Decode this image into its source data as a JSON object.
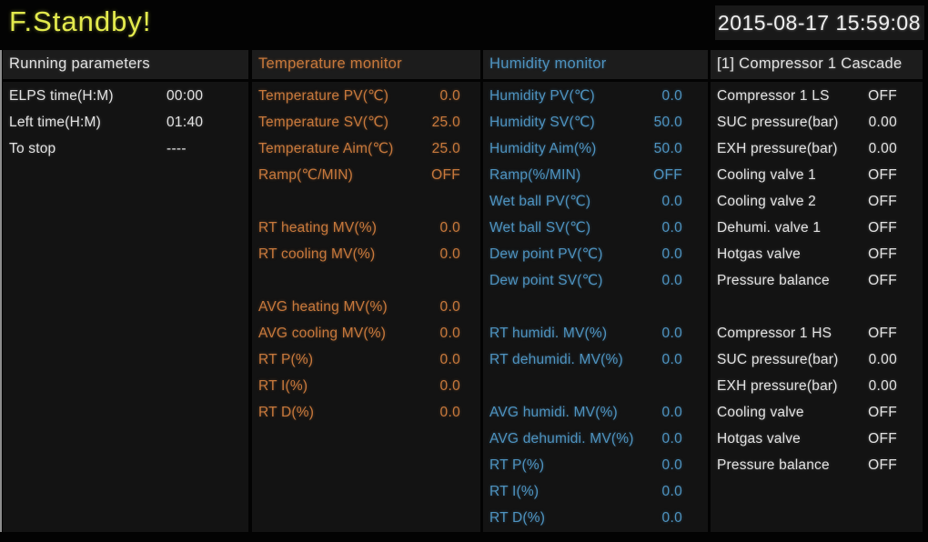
{
  "status_bar": {
    "status_text": "F.Standby!",
    "datetime": "2015-08-17 15:59:08"
  },
  "colors": {
    "accent_yellow": "#e3ea4d",
    "accent_orange": "#c8793c",
    "accent_blue": "#4e93c0",
    "text_white": "#e2e2e2",
    "panel_bg": "#131313",
    "header_bg": "#1c1c1c"
  },
  "panels": [
    {
      "id": "running-parameters",
      "title": "Running parameters",
      "theme": "white",
      "rows": [
        {
          "label": "ELPS time(H:M)",
          "value": "00:00"
        },
        {
          "label": "Left time(H:M)",
          "value": "01:40"
        },
        {
          "label": "To stop",
          "value": "----"
        }
      ]
    },
    {
      "id": "temperature-monitor",
      "title": "Temperature monitor",
      "theme": "orange",
      "rows": [
        {
          "label": "Temperature PV(℃)",
          "value": "0.0"
        },
        {
          "label": "Temperature SV(℃)",
          "value": "25.0"
        },
        {
          "label": "Temperature Aim(℃)",
          "value": "25.0"
        },
        {
          "label": "Ramp(℃/MIN)",
          "value": "OFF"
        },
        null,
        {
          "label": "RT heating MV(%)",
          "value": "0.0"
        },
        {
          "label": "RT cooling MV(%)",
          "value": "0.0"
        },
        null,
        {
          "label": "AVG heating MV(%)",
          "value": "0.0"
        },
        {
          "label": "AVG cooling MV(%)",
          "value": "0.0"
        },
        {
          "label": "RT P(%)",
          "value": "0.0"
        },
        {
          "label": "RT I(%)",
          "value": "0.0"
        },
        {
          "label": "RT D(%)",
          "value": "0.0"
        }
      ]
    },
    {
      "id": "humidity-monitor",
      "title": "Humidity monitor",
      "theme": "blue",
      "rows": [
        {
          "label": "Humidity PV(℃)",
          "value": "0.0"
        },
        {
          "label": "Humidity SV(℃)",
          "value": "50.0"
        },
        {
          "label": "Humidity Aim(%)",
          "value": "50.0"
        },
        {
          "label": "Ramp(%/MIN)",
          "value": "OFF"
        },
        {
          "label": "Wet ball PV(℃)",
          "value": "0.0"
        },
        {
          "label": "Wet ball SV(℃)",
          "value": "0.0"
        },
        {
          "label": "Dew point PV(℃)",
          "value": "0.0"
        },
        {
          "label": "Dew point SV(℃)",
          "value": "0.0"
        },
        null,
        {
          "label": "RT humidi. MV(%)",
          "value": "0.0"
        },
        {
          "label": "RT dehumidi. MV(%)",
          "value": "0.0"
        },
        null,
        {
          "label": "AVG humidi. MV(%)",
          "value": "0.0"
        },
        {
          "label": "AVG dehumidi. MV(%)",
          "value": "0.0"
        },
        {
          "label": "RT P(%)",
          "value": "0.0"
        },
        {
          "label": "RT I(%)",
          "value": "0.0"
        },
        {
          "label": "RT D(%)",
          "value": "0.0"
        }
      ]
    },
    {
      "id": "compressor-1-cascade",
      "title": "[1] Compressor 1 Cascade",
      "theme": "white",
      "rows": [
        {
          "label": "Compressor 1 LS",
          "value": "OFF"
        },
        {
          "label": "SUC pressure(bar)",
          "value": "0.00"
        },
        {
          "label": "EXH pressure(bar)",
          "value": "0.00"
        },
        {
          "label": "Cooling valve 1",
          "value": "OFF"
        },
        {
          "label": "Cooling valve 2",
          "value": "OFF"
        },
        {
          "label": "Dehumi. valve 1",
          "value": "OFF"
        },
        {
          "label": "Hotgas valve",
          "value": "OFF"
        },
        {
          "label": "Pressure balance",
          "value": "OFF"
        },
        null,
        {
          "label": "Compressor 1 HS",
          "value": "OFF"
        },
        {
          "label": "SUC pressure(bar)",
          "value": "0.00"
        },
        {
          "label": "EXH pressure(bar)",
          "value": "0.00"
        },
        {
          "label": "Cooling valve",
          "value": "OFF"
        },
        {
          "label": "Hotgas valve",
          "value": "OFF"
        },
        {
          "label": "Pressure balance",
          "value": "OFF"
        }
      ]
    }
  ]
}
